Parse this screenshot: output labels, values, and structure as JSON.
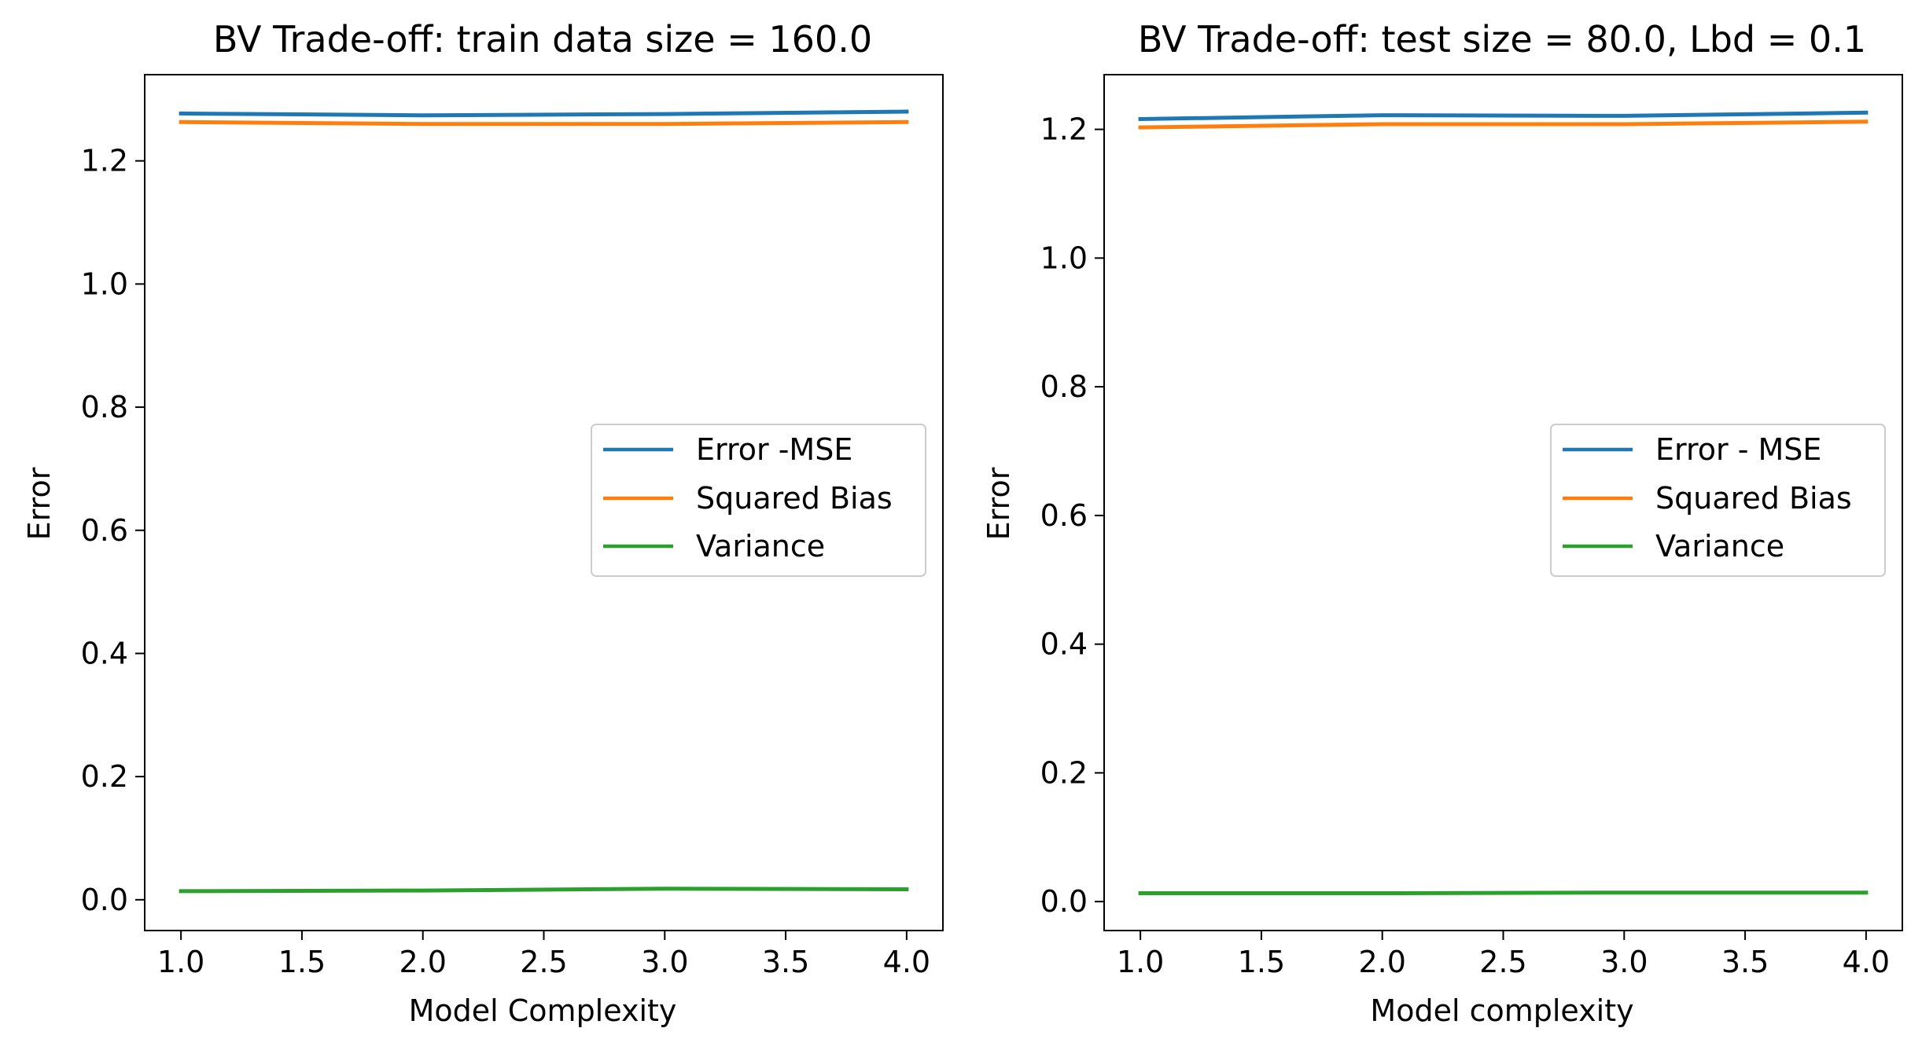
{
  "chart_data": [
    {
      "type": "line",
      "title": "BV Trade-off: train data size = 160.0",
      "xlabel": "Model Complexity",
      "ylabel": "Error",
      "x": [
        1.0,
        2.0,
        3.0,
        4.0
      ],
      "xlim": [
        0.85,
        4.15
      ],
      "ylim": [
        -0.05,
        1.34
      ],
      "xticks": [
        1.0,
        1.5,
        2.0,
        2.5,
        3.0,
        3.5,
        4.0
      ],
      "xtick_labels": [
        "1.0",
        "1.5",
        "2.0",
        "2.5",
        "3.0",
        "3.5",
        "4.0"
      ],
      "yticks": [
        0.0,
        0.2,
        0.4,
        0.6,
        0.8,
        1.0,
        1.2
      ],
      "ytick_labels": [
        "0.0",
        "0.2",
        "0.4",
        "0.6",
        "0.8",
        "1.0",
        "1.2"
      ],
      "grid": false,
      "legend_position": "center-right",
      "series": [
        {
          "name": "Error -MSE",
          "color": "#1f77b4",
          "values": [
            1.277,
            1.274,
            1.276,
            1.28
          ]
        },
        {
          "name": "Squared Bias",
          "color": "#ff7f0e",
          "values": [
            1.263,
            1.26,
            1.26,
            1.263
          ]
        },
        {
          "name": "Variance",
          "color": "#2ca02c",
          "values": [
            0.014,
            0.015,
            0.018,
            0.017
          ]
        }
      ]
    },
    {
      "type": "line",
      "title": "BV Trade-off: test size = 80.0, Lbd = 0.1",
      "xlabel": "Model complexity",
      "ylabel": "Error",
      "x": [
        1.0,
        2.0,
        3.0,
        4.0
      ],
      "xlim": [
        0.85,
        4.15
      ],
      "ylim": [
        -0.045,
        1.285
      ],
      "xticks": [
        1.0,
        1.5,
        2.0,
        2.5,
        3.0,
        3.5,
        4.0
      ],
      "xtick_labels": [
        "1.0",
        "1.5",
        "2.0",
        "2.5",
        "3.0",
        "3.5",
        "4.0"
      ],
      "yticks": [
        0.0,
        0.2,
        0.4,
        0.6,
        0.8,
        1.0,
        1.2
      ],
      "ytick_labels": [
        "0.0",
        "0.2",
        "0.4",
        "0.6",
        "0.8",
        "1.0",
        "1.2"
      ],
      "grid": false,
      "legend_position": "center-right",
      "series": [
        {
          "name": "Error - MSE",
          "color": "#1f77b4",
          "values": [
            1.216,
            1.222,
            1.221,
            1.226
          ]
        },
        {
          "name": "Squared Bias",
          "color": "#ff7f0e",
          "values": [
            1.203,
            1.208,
            1.208,
            1.212
          ]
        },
        {
          "name": "Variance",
          "color": "#2ca02c",
          "values": [
            0.013,
            0.013,
            0.014,
            0.014
          ]
        }
      ]
    }
  ]
}
